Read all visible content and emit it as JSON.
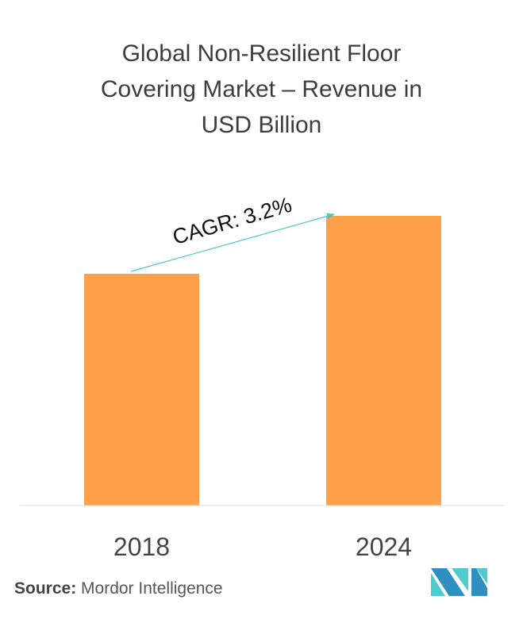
{
  "chart_data": {
    "type": "bar",
    "title_lines": [
      "Global Non-Resilient Floor",
      "Covering Market – Revenue in",
      "USD Billion"
    ],
    "categories": [
      "2018",
      "2024"
    ],
    "values": [
      80,
      100
    ],
    "ylim": [
      0,
      100
    ],
    "grid": false,
    "bar_color": "#fda048",
    "annotation": {
      "text": "CAGR: 3.2%",
      "arrow_color": "#4fc6c9"
    }
  },
  "source": {
    "label": "Source:",
    "text": " Mordor Intelligence"
  },
  "logo": {
    "colors": [
      "#2f8fc0",
      "#4ecad0"
    ]
  }
}
